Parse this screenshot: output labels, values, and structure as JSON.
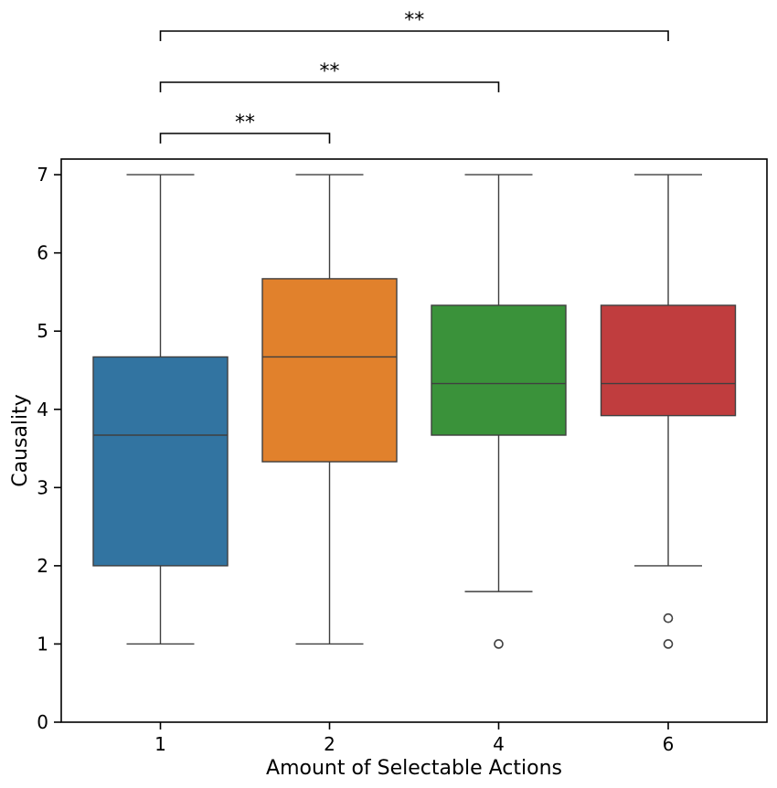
{
  "chart_data": {
    "type": "box",
    "title": "",
    "xlabel": "Amount of Selectable Actions",
    "ylabel": "Causality",
    "ylim": [
      0,
      7.2
    ],
    "yticks": [
      "0",
      "1",
      "2",
      "3",
      "4",
      "5",
      "6",
      "7"
    ],
    "categories": [
      "1",
      "2",
      "4",
      "6"
    ],
    "boxes": [
      {
        "category": "1",
        "whisker_low": 1.0,
        "q1": 2.0,
        "median": 3.67,
        "q3": 4.67,
        "whisker_high": 7.0,
        "outliers": [],
        "color": "#3274a1"
      },
      {
        "category": "2",
        "whisker_low": 1.0,
        "q1": 3.33,
        "median": 4.67,
        "q3": 5.67,
        "whisker_high": 7.0,
        "outliers": [],
        "color": "#e1812c"
      },
      {
        "category": "4",
        "whisker_low": 1.67,
        "q1": 3.67,
        "median": 4.33,
        "q3": 5.33,
        "whisker_high": 7.0,
        "outliers": [
          1.0
        ],
        "color": "#3a923a"
      },
      {
        "category": "6",
        "whisker_low": 2.0,
        "q1": 3.92,
        "median": 4.33,
        "q3": 5.33,
        "whisker_high": 7.0,
        "outliers": [
          1.33,
          1.0
        ],
        "color": "#c03d3e"
      }
    ],
    "significance": [
      {
        "from": "1",
        "to": "2",
        "label": "**"
      },
      {
        "from": "1",
        "to": "4",
        "label": "**"
      },
      {
        "from": "1",
        "to": "6",
        "label": "**"
      }
    ]
  }
}
